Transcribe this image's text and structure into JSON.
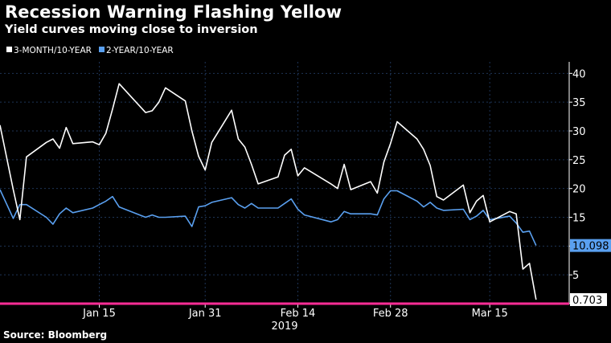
{
  "title": "Recession Warning Flashing Yellow",
  "subtitle": "Yield curves moving close to inversion",
  "source": "Source: Bloomberg",
  "colors": {
    "background": "#000000",
    "series_3m": "#ffffff",
    "series_2y": "#5aa0f0",
    "zero_line": "#ff2d96",
    "grid": "#1e3456"
  },
  "chart_data": {
    "type": "line",
    "legend_position": "top-left",
    "grid": true,
    "ylim": [
      0,
      42
    ],
    "y_ticks": [
      5,
      10,
      15,
      20,
      25,
      30,
      35,
      40
    ],
    "y_tick_labels": [
      "5",
      "10",
      "15",
      "20",
      "25",
      "30",
      "35",
      "40"
    ],
    "x_ticks": [
      {
        "date": "2019-01-15",
        "label": "Jan 15"
      },
      {
        "date": "2019-01-31",
        "label": "Jan 31"
      },
      {
        "date": "2019-02-14",
        "label": "Feb 14"
      },
      {
        "date": "2019-02-28",
        "label": "Feb 28"
      },
      {
        "date": "2019-03-15",
        "label": "Mar 15"
      }
    ],
    "x_year_label": "2019",
    "xlim": [
      "2018-12-31",
      "2019-03-27"
    ],
    "series": [
      {
        "name": "3-MONTH/10-YEAR",
        "end_label": "0.703",
        "points": [
          [
            "2018-12-31",
            31.0
          ],
          [
            "2019-01-02",
            19.8
          ],
          [
            "2019-01-03",
            14.6
          ],
          [
            "2019-01-04",
            25.5
          ],
          [
            "2019-01-07",
            28.0
          ],
          [
            "2019-01-08",
            28.6
          ],
          [
            "2019-01-09",
            27.0
          ],
          [
            "2019-01-10",
            30.6
          ],
          [
            "2019-01-11",
            27.8
          ],
          [
            "2019-01-14",
            28.1
          ],
          [
            "2019-01-15",
            27.6
          ],
          [
            "2019-01-16",
            29.6
          ],
          [
            "2019-01-17",
            33.8
          ],
          [
            "2019-01-18",
            38.2
          ],
          [
            "2019-01-22",
            33.2
          ],
          [
            "2019-01-23",
            33.5
          ],
          [
            "2019-01-24",
            35.0
          ],
          [
            "2019-01-25",
            37.5
          ],
          [
            "2019-01-28",
            35.2
          ],
          [
            "2019-01-29",
            30.0
          ],
          [
            "2019-01-30",
            25.6
          ],
          [
            "2019-01-31",
            23.2
          ],
          [
            "2019-02-01",
            28.0
          ],
          [
            "2019-02-04",
            33.6
          ],
          [
            "2019-02-05",
            28.6
          ],
          [
            "2019-02-06",
            27.2
          ],
          [
            "2019-02-07",
            24.2
          ],
          [
            "2019-02-08",
            20.8
          ],
          [
            "2019-02-11",
            22.0
          ],
          [
            "2019-02-12",
            25.8
          ],
          [
            "2019-02-13",
            26.8
          ],
          [
            "2019-02-14",
            22.2
          ],
          [
            "2019-02-15",
            23.6
          ],
          [
            "2019-02-19",
            20.8
          ],
          [
            "2019-02-20",
            20.0
          ],
          [
            "2019-02-21",
            24.2
          ],
          [
            "2019-02-22",
            19.8
          ],
          [
            "2019-02-25",
            21.2
          ],
          [
            "2019-02-26",
            19.2
          ],
          [
            "2019-02-27",
            24.6
          ],
          [
            "2019-02-28",
            27.8
          ],
          [
            "2019-03-01",
            31.6
          ],
          [
            "2019-03-04",
            28.6
          ],
          [
            "2019-03-05",
            26.8
          ],
          [
            "2019-03-06",
            24.0
          ],
          [
            "2019-03-07",
            18.6
          ],
          [
            "2019-03-08",
            18.0
          ],
          [
            "2019-03-11",
            20.6
          ],
          [
            "2019-03-12",
            15.8
          ],
          [
            "2019-03-13",
            17.8
          ],
          [
            "2019-03-14",
            18.8
          ],
          [
            "2019-03-15",
            14.2
          ],
          [
            "2019-03-18",
            16.0
          ],
          [
            "2019-03-19",
            15.6
          ],
          [
            "2019-03-20",
            6.0
          ],
          [
            "2019-03-21",
            7.0
          ],
          [
            "2019-03-22",
            0.703
          ]
        ]
      },
      {
        "name": "2-YEAR/10-YEAR",
        "end_label": "10.098",
        "points": [
          [
            "2018-12-31",
            19.8
          ],
          [
            "2019-01-02",
            14.8
          ],
          [
            "2019-01-03",
            17.2
          ],
          [
            "2019-01-04",
            17.2
          ],
          [
            "2019-01-07",
            15.0
          ],
          [
            "2019-01-08",
            13.8
          ],
          [
            "2019-01-09",
            15.6
          ],
          [
            "2019-01-10",
            16.6
          ],
          [
            "2019-01-11",
            15.8
          ],
          [
            "2019-01-14",
            16.6
          ],
          [
            "2019-01-15",
            17.2
          ],
          [
            "2019-01-16",
            17.8
          ],
          [
            "2019-01-17",
            18.6
          ],
          [
            "2019-01-18",
            16.8
          ],
          [
            "2019-01-22",
            15.0
          ],
          [
            "2019-01-23",
            15.4
          ],
          [
            "2019-01-24",
            15.0
          ],
          [
            "2019-01-25",
            15.0
          ],
          [
            "2019-01-28",
            15.2
          ],
          [
            "2019-01-29",
            13.4
          ],
          [
            "2019-01-30",
            16.8
          ],
          [
            "2019-01-31",
            17.0
          ],
          [
            "2019-02-01",
            17.6
          ],
          [
            "2019-02-04",
            18.4
          ],
          [
            "2019-02-05",
            17.2
          ],
          [
            "2019-02-06",
            16.6
          ],
          [
            "2019-02-07",
            17.4
          ],
          [
            "2019-02-08",
            16.6
          ],
          [
            "2019-02-11",
            16.6
          ],
          [
            "2019-02-12",
            17.4
          ],
          [
            "2019-02-13",
            18.2
          ],
          [
            "2019-02-14",
            16.4
          ],
          [
            "2019-02-15",
            15.4
          ],
          [
            "2019-02-19",
            14.2
          ],
          [
            "2019-02-20",
            14.6
          ],
          [
            "2019-02-21",
            16.0
          ],
          [
            "2019-02-22",
            15.6
          ],
          [
            "2019-02-25",
            15.6
          ],
          [
            "2019-02-26",
            15.4
          ],
          [
            "2019-02-27",
            18.2
          ],
          [
            "2019-02-28",
            19.6
          ],
          [
            "2019-03-01",
            19.6
          ],
          [
            "2019-03-04",
            17.8
          ],
          [
            "2019-03-05",
            16.8
          ],
          [
            "2019-03-06",
            17.6
          ],
          [
            "2019-03-07",
            16.6
          ],
          [
            "2019-03-08",
            16.2
          ],
          [
            "2019-03-11",
            16.4
          ],
          [
            "2019-03-12",
            14.6
          ],
          [
            "2019-03-13",
            15.2
          ],
          [
            "2019-03-14",
            16.2
          ],
          [
            "2019-03-15",
            14.6
          ],
          [
            "2019-03-18",
            15.2
          ],
          [
            "2019-03-19",
            14.0
          ],
          [
            "2019-03-20",
            12.4
          ],
          [
            "2019-03-21",
            12.6
          ],
          [
            "2019-03-22",
            10.098
          ]
        ]
      }
    ]
  }
}
